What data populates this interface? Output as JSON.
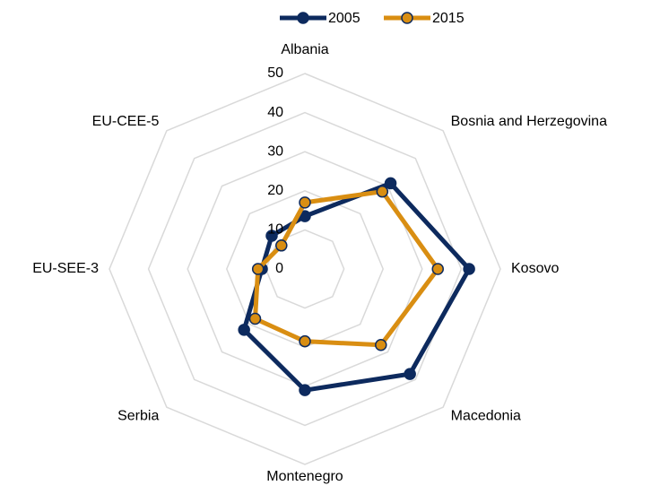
{
  "chart_data": {
    "type": "radar",
    "categories": [
      "Albania",
      "Bosnia and Herzegovina",
      "Kosovo",
      "Macedonia",
      "Montenegro",
      "Serbia",
      "EU-SEE-3",
      "EU-CEE-5"
    ],
    "series": [
      {
        "name": "2005",
        "color": "#0d2a5e",
        "values": [
          13.5,
          31,
          42,
          38,
          31,
          22,
          11,
          12
        ]
      },
      {
        "name": "2015",
        "color": "#d98e12",
        "values": [
          17,
          28,
          34,
          27.5,
          18.5,
          18,
          12,
          8.5
        ]
      }
    ],
    "ylim": [
      0,
      50
    ],
    "yticks": [
      0,
      10,
      20,
      30,
      40,
      50
    ],
    "grid": true,
    "legend": "top"
  }
}
